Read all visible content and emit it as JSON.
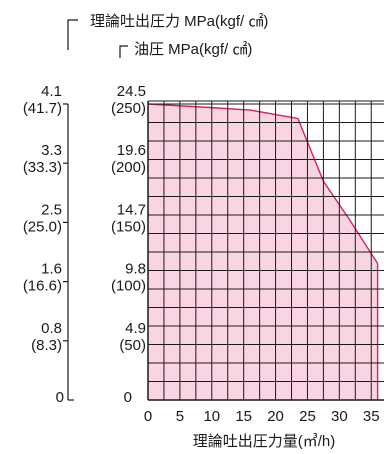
{
  "chart_data": {
    "type": "area",
    "header_label": "理論吐出圧力 MPa(kgf/ ㎠)",
    "y_axis_label": "油圧 MPa(kgf/ ㎠)",
    "xlabel": "理論吐出圧力量(㎥/h)",
    "x_ticks": [
      "0",
      "5",
      "10",
      "15",
      "20",
      "25",
      "30",
      "35"
    ],
    "xlim": [
      0,
      37
    ],
    "ylim": [
      0,
      25
    ],
    "y_ticks": [
      {
        "value": 0,
        "outer": "0",
        "inner": "0"
      },
      {
        "value": 4.9,
        "outer": "0.8",
        "outer_sub": "(8.3)",
        "inner": "4.9",
        "inner_sub": "(50)"
      },
      {
        "value": 9.8,
        "outer": "1.6",
        "outer_sub": "(16.6)",
        "inner": "9.8",
        "inner_sub": "(100)"
      },
      {
        "value": 14.7,
        "outer": "2.5",
        "outer_sub": "(25.0)",
        "inner": "14.7",
        "inner_sub": "(150)"
      },
      {
        "value": 19.6,
        "outer": "3.3",
        "outer_sub": "(33.3)",
        "inner": "19.6",
        "inner_sub": "(200)"
      },
      {
        "value": 24.5,
        "outer": "4.1",
        "outer_sub": "(41.7)",
        "inner": "24.5",
        "inner_sub": "(250)"
      }
    ],
    "series": [
      {
        "x": [
          0,
          10,
          16,
          23.5,
          27.5,
          31.5,
          36
        ],
        "y": [
          24.5,
          24.2,
          24.0,
          23.3,
          18.1,
          15.0,
          11.3
        ]
      }
    ],
    "grid": true,
    "colors": {
      "fill": "#f9d5e3",
      "line": "#d6245a",
      "grid": "#1a1a1a"
    }
  }
}
